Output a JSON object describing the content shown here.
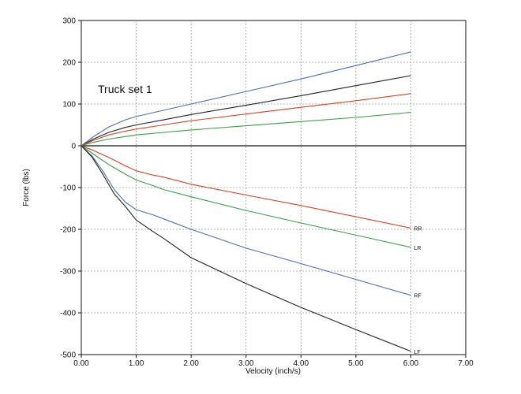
{
  "chart_data": {
    "type": "line",
    "title": "Truck set 1",
    "xlabel": "Velocity (inch/s)",
    "ylabel": "Force (lbs)",
    "xlim": [
      0,
      7
    ],
    "ylim": [
      -500,
      300
    ],
    "xticks": [
      0,
      1,
      2,
      3,
      4,
      5,
      6,
      7
    ],
    "xtick_labels": [
      "0.00",
      "1.00",
      "2.00",
      "3.00",
      "4.00",
      "5.00",
      "6.00",
      "7.00"
    ],
    "yticks": [
      -500,
      -400,
      -300,
      -200,
      -100,
      0,
      100,
      200,
      300
    ],
    "ytick_labels": [
      "-500",
      "-400",
      "-300",
      "-200",
      "-100",
      "0",
      "100",
      "200",
      "300"
    ],
    "grid": true,
    "series": [
      {
        "color": "#4a6fb0",
        "points": [
          [
            0,
            0
          ],
          [
            0.2,
            20
          ],
          [
            0.5,
            45
          ],
          [
            0.8,
            62
          ],
          [
            1.0,
            70
          ],
          [
            1.5,
            85
          ],
          [
            2.0,
            100
          ],
          [
            3.0,
            130
          ],
          [
            4.0,
            160
          ],
          [
            5.0,
            192
          ],
          [
            6.0,
            225
          ]
        ]
      },
      {
        "color": "#222222",
        "points": [
          [
            0,
            0
          ],
          [
            0.2,
            15
          ],
          [
            0.5,
            32
          ],
          [
            0.8,
            44
          ],
          [
            1.0,
            50
          ],
          [
            1.5,
            62
          ],
          [
            2.0,
            75
          ],
          [
            3.0,
            97
          ],
          [
            4.0,
            120
          ],
          [
            5.0,
            144
          ],
          [
            6.0,
            168
          ]
        ]
      },
      {
        "color": "#d2452a",
        "points": [
          [
            0,
            0
          ],
          [
            0.2,
            12
          ],
          [
            0.5,
            26
          ],
          [
            0.8,
            35
          ],
          [
            1.0,
            40
          ],
          [
            1.5,
            50
          ],
          [
            2.0,
            60
          ],
          [
            3.0,
            76
          ],
          [
            4.0,
            92
          ],
          [
            5.0,
            108
          ],
          [
            6.0,
            125
          ]
        ]
      },
      {
        "color": "#3f9a4a",
        "points": [
          [
            0,
            0
          ],
          [
            0.2,
            8
          ],
          [
            0.5,
            16
          ],
          [
            0.8,
            22
          ],
          [
            1.0,
            26
          ],
          [
            1.5,
            32
          ],
          [
            2.0,
            38
          ],
          [
            3.0,
            48
          ],
          [
            4.0,
            58
          ],
          [
            5.0,
            68
          ],
          [
            6.0,
            80
          ]
        ]
      },
      {
        "name": "RR",
        "color": "#d2452a",
        "points": [
          [
            0,
            0
          ],
          [
            0.2,
            -10
          ],
          [
            0.5,
            -28
          ],
          [
            0.8,
            -48
          ],
          [
            1.0,
            -60
          ],
          [
            1.3,
            -70
          ],
          [
            1.5,
            -75
          ],
          [
            2.0,
            -92
          ],
          [
            3.0,
            -118
          ],
          [
            4.0,
            -143
          ],
          [
            5.0,
            -170
          ],
          [
            6.0,
            -197
          ]
        ]
      },
      {
        "name": "LR",
        "color": "#3f9a4a",
        "points": [
          [
            0,
            0
          ],
          [
            0.2,
            -18
          ],
          [
            0.5,
            -45
          ],
          [
            0.8,
            -68
          ],
          [
            1.0,
            -82
          ],
          [
            1.3,
            -95
          ],
          [
            1.5,
            -105
          ],
          [
            2.0,
            -122
          ],
          [
            3.0,
            -155
          ],
          [
            4.0,
            -185
          ],
          [
            5.0,
            -214
          ],
          [
            6.0,
            -243
          ]
        ]
      },
      {
        "name": "RF",
        "color": "#4a6fb0",
        "points": [
          [
            0,
            0
          ],
          [
            0.2,
            -25
          ],
          [
            0.4,
            -62
          ],
          [
            0.6,
            -105
          ],
          [
            0.8,
            -135
          ],
          [
            1.0,
            -153
          ],
          [
            1.3,
            -165
          ],
          [
            1.5,
            -175
          ],
          [
            2.0,
            -200
          ],
          [
            3.0,
            -245
          ],
          [
            4.0,
            -282
          ],
          [
            5.0,
            -320
          ],
          [
            6.0,
            -358
          ]
        ]
      },
      {
        "name": "LF",
        "color": "#222222",
        "points": [
          [
            0,
            0
          ],
          [
            0.2,
            -28
          ],
          [
            0.4,
            -70
          ],
          [
            0.6,
            -115
          ],
          [
            0.8,
            -145
          ],
          [
            1.0,
            -178
          ],
          [
            1.3,
            -205
          ],
          [
            1.5,
            -222
          ],
          [
            2.0,
            -268
          ],
          [
            3.0,
            -330
          ],
          [
            4.0,
            -387
          ],
          [
            5.0,
            -440
          ],
          [
            6.0,
            -492
          ]
        ]
      }
    ]
  }
}
